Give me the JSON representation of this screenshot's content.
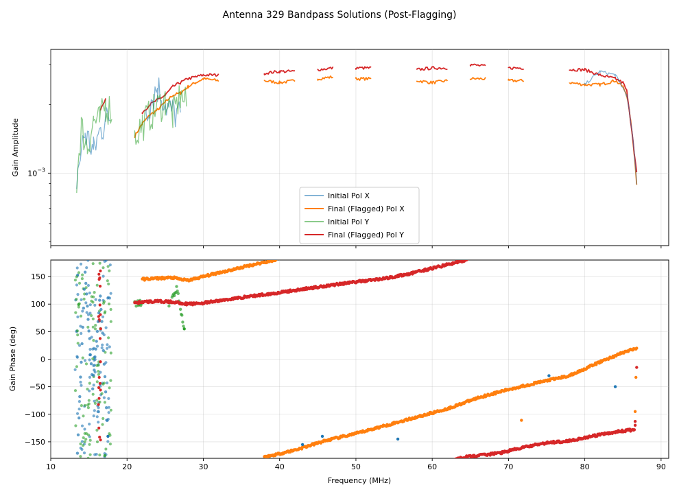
{
  "figure": {
    "title": "Antenna 329 Bandpass Solutions (Post-Flagging)"
  },
  "colors": {
    "x_initial": "#1f77b4",
    "x_final": "#ff7f0e",
    "y_initial": "#2ca02c",
    "y_final": "#d62728"
  },
  "chart_data": [
    {
      "type": "line",
      "panel": "amplitude",
      "xlabel": "",
      "ylabel": "Gain Amplitude",
      "yscale": "log",
      "xlim": [
        10,
        91
      ],
      "ylim": [
        0.00048,
        0.0035
      ],
      "ytick_labels": [
        "10^-3"
      ],
      "grid": true,
      "legend": [
        "Initial Pol X",
        "Final (Flagged) Pol X",
        "Initial Pol Y",
        "Final (Flagged) Pol Y"
      ],
      "legend_position": "lower-center",
      "series": [
        {
          "name": "Initial Pol X",
          "x": [
            13.4,
            14.5,
            15.6,
            16.7,
            17.8,
            22.5,
            24.0,
            25.5,
            27.0,
            30,
            35,
            40,
            43.0,
            45.7,
            50,
            55,
            60,
            65,
            70,
            75,
            80,
            82.0,
            84.0,
            85.5,
            86.8
          ],
          "y": [
            0.00095,
            0.0015,
            0.00125,
            0.0016,
            0.0018,
            0.0019,
            0.0024,
            0.0019,
            0.0018,
            0.0026,
            0.00255,
            0.0025,
            0.0022,
            0.0019,
            0.00255,
            0.0025,
            0.00245,
            0.00255,
            0.0025,
            0.00245,
            0.00245,
            0.0028,
            0.0027,
            0.0022,
            0.0009
          ]
        },
        {
          "name": "Final (Flagged) Pol X",
          "x": [
            21.0,
            22.0,
            23.0,
            24.0,
            25.0,
            26.0,
            27.0,
            28.0,
            29.0,
            30,
            32,
            35,
            38,
            40,
            42,
            45,
            47,
            50,
            52,
            55,
            58,
            60,
            62,
            65,
            67,
            70,
            72,
            75,
            78,
            80,
            82,
            83,
            84,
            85,
            85.5,
            86.0,
            86.5,
            86.8
          ],
          "y": [
            0.00145,
            0.00165,
            0.0018,
            0.0019,
            0.00205,
            0.0022,
            0.00225,
            0.0024,
            0.0025,
            0.0026,
            0.00255,
            0.0026,
            0.00255,
            0.0025,
            0.00255,
            0.0026,
            0.00265,
            0.0026,
            0.0026,
            0.0026,
            0.00255,
            0.0025,
            0.00255,
            0.0026,
            0.0026,
            0.00255,
            0.00255,
            0.00255,
            0.0025,
            0.00245,
            0.00245,
            0.0025,
            0.00255,
            0.0024,
            0.0022,
            0.0017,
            0.0012,
            0.0009
          ]
        },
        {
          "name": "Initial Pol Y",
          "x": [
            13.4,
            14.0,
            14.8,
            15.6,
            16.4,
            17.2,
            18.0,
            21.0,
            22.0,
            23.5,
            25.0,
            26.0,
            27.0,
            27.8
          ],
          "y": [
            0.0009,
            0.0016,
            0.0013,
            0.0017,
            0.0017,
            0.002,
            0.0019,
            0.00145,
            0.00165,
            0.0019,
            0.0021,
            0.0018,
            0.0022,
            0.002
          ]
        },
        {
          "name": "Final (Flagged) Pol Y",
          "x": [
            16.5,
            17.2,
            22.0,
            23.0,
            24.0,
            25.0,
            26.0,
            27.0,
            28.0,
            29.0,
            30,
            32,
            35,
            38,
            40,
            42,
            45,
            47,
            50,
            52,
            55,
            58,
            60,
            62,
            65,
            67,
            70,
            72,
            75,
            78,
            80,
            82,
            83,
            84,
            85,
            85.5,
            86.0,
            86.5,
            86.8
          ],
          "y": [
            0.0019,
            0.0021,
            0.00185,
            0.002,
            0.0021,
            0.0022,
            0.0024,
            0.0025,
            0.0026,
            0.00265,
            0.0027,
            0.0027,
            0.00275,
            0.00275,
            0.0028,
            0.0028,
            0.00285,
            0.0029,
            0.0029,
            0.0029,
            0.00285,
            0.00285,
            0.0029,
            0.0029,
            0.003,
            0.00295,
            0.0029,
            0.0029,
            0.0029,
            0.00285,
            0.00285,
            0.0027,
            0.00265,
            0.0026,
            0.0025,
            0.0023,
            0.0017,
            0.0012,
            0.001
          ]
        }
      ]
    },
    {
      "type": "scatter",
      "panel": "phase",
      "xlabel": "Frequency (MHz)",
      "ylabel": "Gain Phase (deg)",
      "xlim": [
        10,
        91
      ],
      "ylim": [
        -180,
        180
      ],
      "xticks": [
        10,
        20,
        30,
        40,
        50,
        60,
        70,
        80,
        90
      ],
      "yticks": [
        -150,
        -100,
        -50,
        0,
        50,
        100,
        150
      ],
      "grid": true,
      "series": [
        {
          "name": "Final (Flagged) Pol X",
          "segments": [
            {
              "x": [
                22,
                24,
                26,
                27,
                28,
                30,
                32,
                34,
                36,
                38,
                39.5
              ],
              "y": [
                145,
                147,
                148,
                145,
                143,
                150,
                157,
                163,
                170,
                176,
                180
              ]
            },
            {
              "x": [
                38,
                42,
                46,
                50,
                54,
                58,
                62,
                66,
                70,
                74,
                78,
                82,
                85,
                86.8
              ],
              "y": [
                -178,
                -165,
                -148,
                -135,
                -120,
                -105,
                -90,
                -70,
                -55,
                -42,
                -30,
                -5,
                12,
                20
              ]
            }
          ]
        },
        {
          "name": "Final (Flagged) Pol Y",
          "segments": [
            {
              "x": [
                21,
                22,
                24,
                26,
                28,
                30,
                33,
                36,
                39,
                42,
                45,
                48,
                51,
                54,
                57,
                60,
                63,
                64.5
              ],
              "y": [
                102,
                104,
                105,
                104,
                100,
                102,
                108,
                114,
                119,
                125,
                131,
                137,
                142,
                147,
                155,
                165,
                175,
                180
              ]
            },
            {
              "x": [
                63,
                66,
                69,
                72,
                75,
                78,
                81,
                84,
                86.5
              ],
              "y": [
                -180,
                -175,
                -170,
                -160,
                -152,
                -148,
                -140,
                -132,
                -128
              ]
            }
          ]
        },
        {
          "name": "Initial Pol X",
          "segments": [
            {
              "x": [
                13.5,
                14.5,
                15.5,
                16.5,
                17.5
              ],
              "y": [
                -170,
                160,
                -50,
                120,
                -140
              ]
            }
          ]
        },
        {
          "name": "Initial Pol Y",
          "segments": [
            {
              "x": [
                21,
                22
              ],
              "y": [
                100,
                103
              ]
            },
            {
              "x": [
                25.5,
                26.5,
                27.5
              ],
              "y": [
                95,
                130,
                55
              ]
            }
          ]
        }
      ]
    }
  ]
}
